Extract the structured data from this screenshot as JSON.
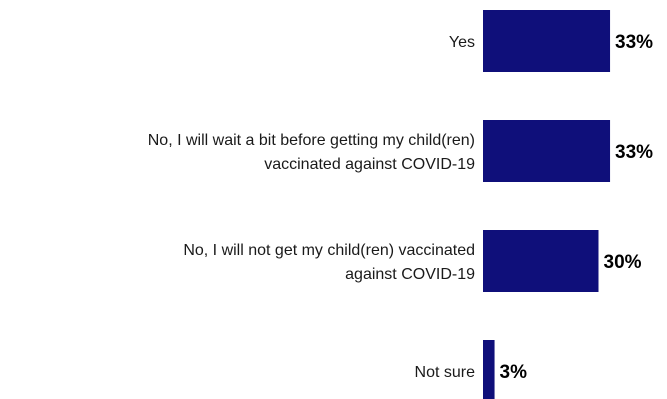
{
  "chart_data": {
    "type": "bar",
    "orientation": "horizontal",
    "title": "",
    "xlabel": "",
    "ylabel": "",
    "categories": [
      [
        "Yes"
      ],
      [
        "No, I will wait a bit before getting my child(ren)",
        "vaccinated against COVID-19"
      ],
      [
        "No, I will not get my child(ren) vaccinated",
        "against COVID-19"
      ],
      [
        "Not sure"
      ]
    ],
    "values": [
      33,
      33,
      30,
      3
    ],
    "value_labels": [
      "33%",
      "33%",
      "30%",
      "3%"
    ],
    "xlim": [
      0,
      100
    ],
    "grid": false,
    "legend": "none",
    "bar_color": "#0f0f7a"
  }
}
